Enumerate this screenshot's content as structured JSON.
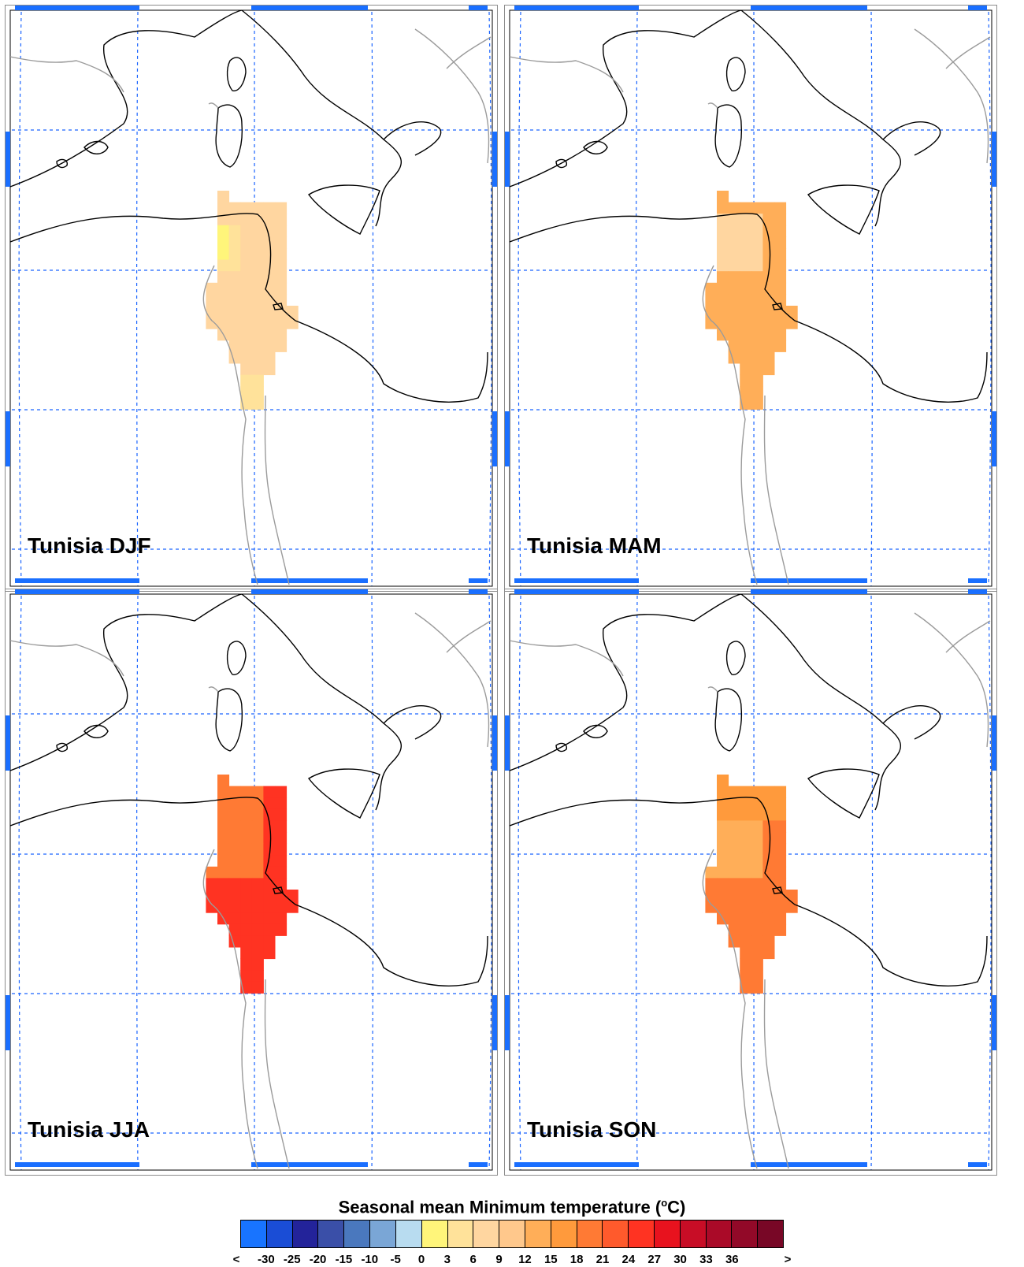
{
  "panels": [
    {
      "label": "Tunisia DJF",
      "season": "DJF"
    },
    {
      "label": "Tunisia MAM",
      "season": "MAM"
    },
    {
      "label": "Tunisia JJA",
      "season": "JJA"
    },
    {
      "label": "Tunisia SON",
      "season": "SON"
    }
  ],
  "legend": {
    "title_main": "Seasonal mean Minimum temperature (",
    "title_sup": "o",
    "title_end": "C)",
    "tick_labels": [
      "<",
      "-30",
      "-25",
      "-20",
      "-15",
      "-10",
      "-5",
      "0",
      "3",
      "6",
      "9",
      "12",
      "15",
      "18",
      "21",
      "24",
      "27",
      "30",
      "33",
      "36",
      ">"
    ],
    "colors": [
      "#1874ff",
      "#1a4dd6",
      "#23239a",
      "#3a4fa8",
      "#4a78be",
      "#7aa6d6",
      "#b8dcf0",
      "#fff57a",
      "#ffe29a",
      "#ffd6a0",
      "#ffc88c",
      "#ffae58",
      "#ff9a3c",
      "#ff7a34",
      "#ff5a2c",
      "#ff3322",
      "#e8121e",
      "#c80d26",
      "#aa0a28",
      "#920928",
      "#780726"
    ]
  },
  "style_colors": {
    "coast": "#000000",
    "border": "#9b9b9b",
    "grid": "#1a64ff",
    "frame_tick": "#1a6fff"
  }
}
